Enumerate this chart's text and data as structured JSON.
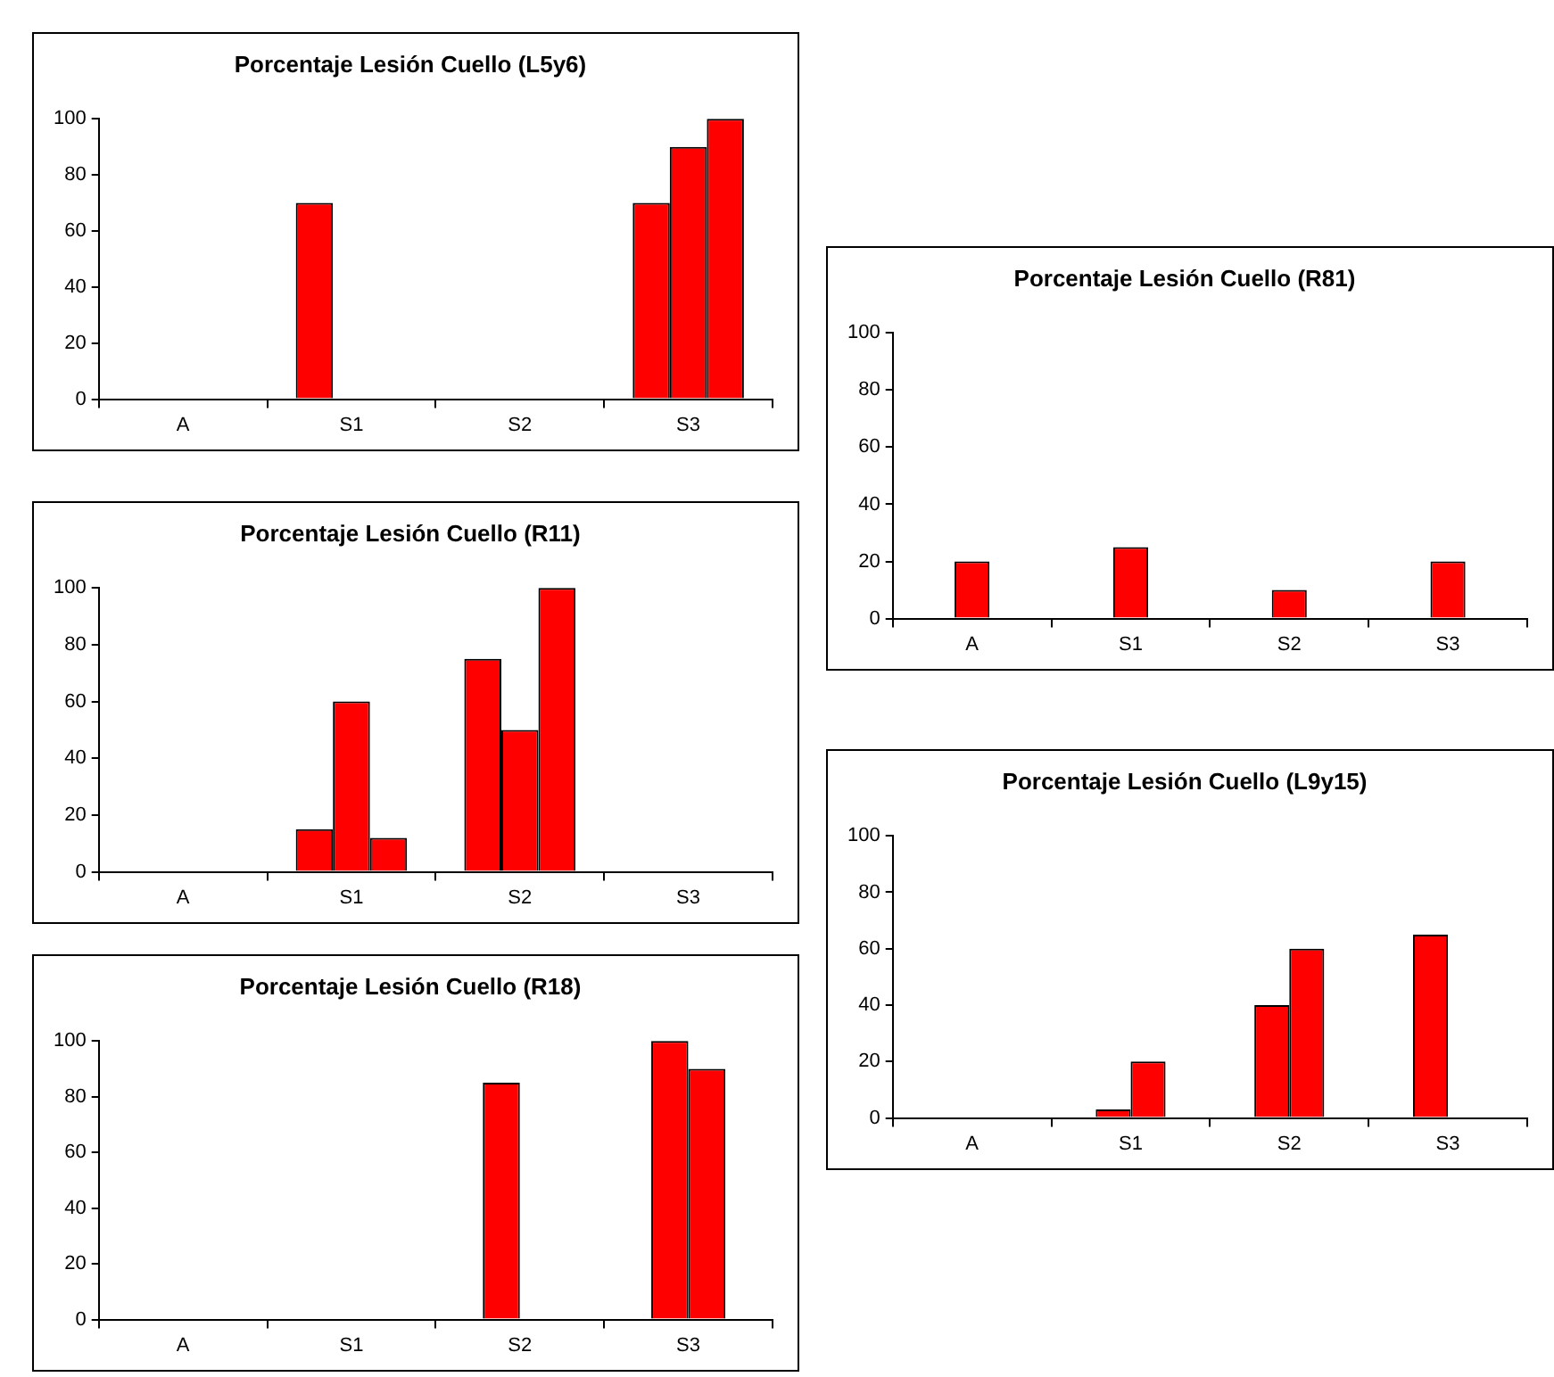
{
  "chart_data": [
    {
      "type": "bar",
      "title": "Porcentaje Lesión Cuello (L5y6)",
      "categories": [
        "A",
        "S1",
        "S2",
        "S3"
      ],
      "ylim": [
        0,
        100
      ],
      "yticks": [
        0,
        20,
        40,
        60,
        80,
        100
      ],
      "series": [
        {
          "color": "#ff0000",
          "values": [
            null,
            70,
            null,
            70
          ]
        },
        {
          "color": "#ff0000",
          "values": [
            null,
            null,
            null,
            90
          ]
        },
        {
          "color": "#ff0000",
          "values": [
            null,
            null,
            null,
            100
          ]
        }
      ]
    },
    {
      "type": "bar",
      "title": "Porcentaje Lesión Cuello (R11)",
      "categories": [
        "A",
        "S1",
        "S2",
        "S3"
      ],
      "ylim": [
        0,
        100
      ],
      "yticks": [
        0,
        20,
        40,
        60,
        80,
        100
      ],
      "series": [
        {
          "color": "#ff0000",
          "values": [
            null,
            15,
            75,
            null
          ]
        },
        {
          "color": "#ff0000",
          "values": [
            null,
            60,
            50,
            null
          ]
        },
        {
          "color": "#ff0000",
          "values": [
            null,
            12,
            100,
            null
          ]
        }
      ]
    },
    {
      "type": "bar",
      "title": "Porcentaje Lesión Cuello (R18)",
      "categories": [
        "A",
        "S1",
        "S2",
        "S3"
      ],
      "ylim": [
        0,
        100
      ],
      "yticks": [
        0,
        20,
        40,
        60,
        80,
        100
      ],
      "series": [
        {
          "color": "#ff0000",
          "values": [
            null,
            null,
            85,
            100
          ]
        },
        {
          "color": "#ff0000",
          "values": [
            null,
            null,
            null,
            90
          ]
        }
      ]
    },
    {
      "type": "bar",
      "title": "Porcentaje Lesión Cuello (R81)",
      "categories": [
        "A",
        "S1",
        "S2",
        "S3"
      ],
      "ylim": [
        0,
        100
      ],
      "yticks": [
        0,
        20,
        40,
        60,
        80,
        100
      ],
      "series": [
        {
          "color": "#ff0000",
          "values": [
            20,
            25,
            10,
            20
          ]
        }
      ]
    },
    {
      "type": "bar",
      "title": "Porcentaje Lesión Cuello (L9y15)",
      "categories": [
        "A",
        "S1",
        "S2",
        "S3"
      ],
      "ylim": [
        0,
        100
      ],
      "yticks": [
        0,
        20,
        40,
        60,
        80,
        100
      ],
      "series": [
        {
          "color": "#ff0000",
          "values": [
            null,
            3,
            40,
            65
          ]
        },
        {
          "color": "#ff0000",
          "values": [
            null,
            20,
            60,
            null
          ]
        }
      ]
    }
  ]
}
